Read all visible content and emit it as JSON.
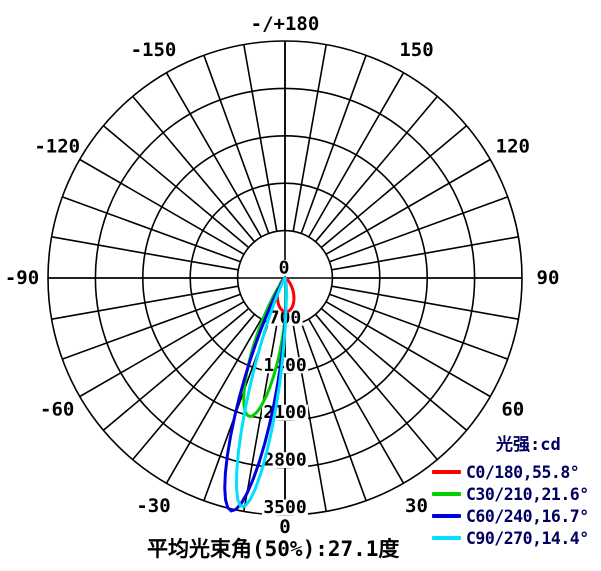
{
  "chart": {
    "legend": {
      "title": "光强:cd",
      "entries": [
        {
          "label": "C0/180,55.8°"
        },
        {
          "label": "C30/210,21.6°"
        },
        {
          "label": "C60/240,16.7°"
        },
        {
          "label": "C90/270,14.4°"
        }
      ]
    },
    "caption": "平均光束角(50%):27.1度"
  },
  "chart_data": {
    "type": "polar-photometric-intensity",
    "unit": "cd",
    "rmax_cd": 3500,
    "ring_step_cd": 700,
    "ring_labels": [
      "0",
      "700",
      "1400",
      "2100",
      "2800",
      "3500"
    ],
    "grid_angle_step_deg": 10,
    "angle_label_step_deg": 30,
    "angle_labels": [
      {
        "deg": 0,
        "text": "0"
      },
      {
        "deg": 30,
        "text": "30"
      },
      {
        "deg": 60,
        "text": "60"
      },
      {
        "deg": 90,
        "text": "90"
      },
      {
        "deg": 120,
        "text": "120"
      },
      {
        "deg": 150,
        "text": "150"
      },
      {
        "deg": 180,
        "text": "-/+180"
      },
      {
        "deg": -30,
        "text": "-30"
      },
      {
        "deg": -60,
        "text": "-60"
      },
      {
        "deg": -90,
        "text": "-90"
      },
      {
        "deg": -120,
        "text": "-120"
      },
      {
        "deg": -150,
        "text": "-150"
      }
    ],
    "series": [
      {
        "name": "C0/180",
        "color": "#ff0000",
        "peak_cd": 500,
        "peak_angle_deg": 2.0,
        "beam_angle_50pct_deg": 55.8
      },
      {
        "name": "C30/210",
        "color": "#00d000",
        "peak_cd": 2110,
        "peak_angle_deg": -14.5,
        "beam_angle_50pct_deg": 21.6
      },
      {
        "name": "C60/240",
        "color": "#0000e0",
        "peak_cd": 3530,
        "peak_angle_deg": -13.0,
        "beam_angle_50pct_deg": 16.7
      },
      {
        "name": "C90/270",
        "color": "#00e0ff",
        "peak_cd": 3440,
        "peak_angle_deg": -10.6,
        "beam_angle_50pct_deg": 14.4
      }
    ],
    "average_beam_angle_50pct_deg": 27.1,
    "grid_color": "#000000",
    "label_color": "#000000",
    "legend_text_color": "#000060"
  }
}
